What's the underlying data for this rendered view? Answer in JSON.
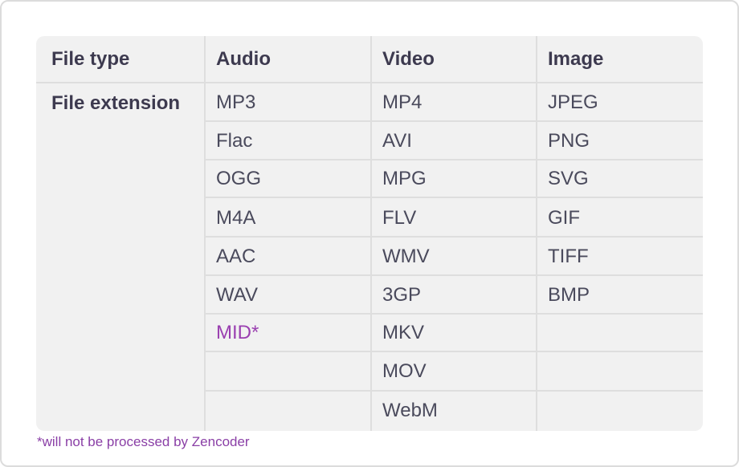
{
  "table": {
    "header": {
      "row_label": "File type",
      "columns": [
        "Audio",
        "Video",
        "Image"
      ]
    },
    "row_label": "File extension",
    "columns": {
      "audio": [
        "MP3",
        "Flac",
        "OGG",
        "M4A",
        "AAC",
        "WAV",
        "MID*",
        "",
        ""
      ],
      "video": [
        "MP4",
        "AVI",
        "MPG",
        "FLV",
        "WMV",
        "3GP",
        "MKV",
        "MOV",
        "WebM"
      ],
      "image": [
        "JPEG",
        "PNG",
        "SVG",
        "GIF",
        "TIFF",
        "BMP",
        "",
        "",
        ""
      ]
    },
    "flagged_color": "#9a3fb0"
  },
  "footnote": "*will not be processed by Zencoder"
}
